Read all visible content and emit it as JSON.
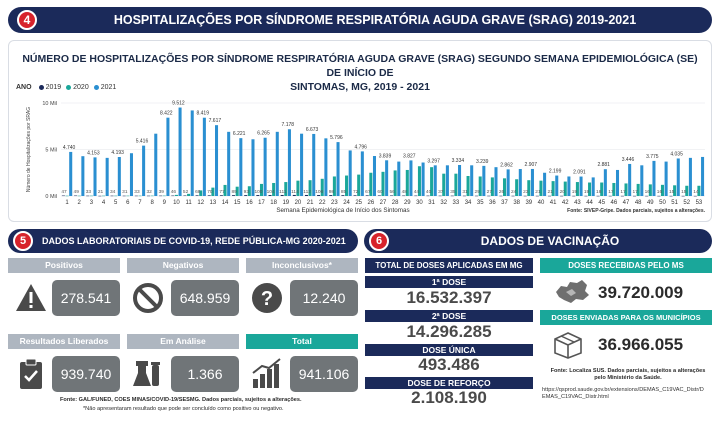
{
  "header": {
    "number": "4",
    "title": "HOSPITALIZAÇÕES POR SÍNDROME RESPIRATÓRIA AGUDA GRAVE (SRAG) 2019-2021"
  },
  "chart": {
    "title_line1": "NÚMERO DE HOSPITALIZAÇÕES POR SÍNDROME RESPIRATÓRIA AGUDA GRAVE (SRAG) SEGUNDO SEMANA EPIDEMIOLÓGICA (SE) DE INÍCIO DE",
    "title_line2": "SINTOMAS, MG, 2019 - 2021",
    "legend_label": "ANO",
    "source": "Fonte: SIVEP-Gripe. Dados parciais, sujeitos a alterações."
  },
  "chart_data": {
    "type": "bar",
    "title": "NÚMERO DE HOSPITALIZAÇÕES POR SÍNDROME RESPIRATÓRIA AGUDA GRAVE (SRAG) SEGUNDO SEMANA EPIDEMIOLÓGICA (SE) DE INÍCIO DE SINTOMAS, MG, 2019 - 2021",
    "xlabel": "Semana Epidemiológica de Início dos Sintomas",
    "ylabel": "Número de Hospitalizações por SRAG",
    "yticks": [
      "0 Mil",
      "5 Mil",
      "10 Mil"
    ],
    "ylim": [
      0,
      10000
    ],
    "categories": [
      "1",
      "2",
      "3",
      "4",
      "5",
      "6",
      "7",
      "8",
      "9",
      "10",
      "11",
      "12",
      "13",
      "14",
      "15",
      "16",
      "17",
      "18",
      "19",
      "20",
      "21",
      "22",
      "23",
      "24",
      "25",
      "26",
      "27",
      "28",
      "29",
      "30",
      "31",
      "32",
      "33",
      "34",
      "35",
      "36",
      "37",
      "38",
      "39",
      "40",
      "41",
      "42",
      "43",
      "44",
      "45",
      "46",
      "47",
      "48",
      "49",
      "50",
      "51",
      "52",
      "53"
    ],
    "series": [
      {
        "name": "2019",
        "color": "#1b2a5a",
        "values": [
          47,
          49,
          33,
          21,
          34,
          31,
          33,
          32,
          39,
          46,
          52,
          68,
          70,
          77,
          89,
          93,
          100,
          104,
          111,
          114,
          112,
          106,
          98,
          85,
          72,
          67,
          60,
          56,
          48,
          44,
          40,
          37,
          35,
          31,
          29,
          27,
          26,
          24,
          23,
          21,
          21,
          20,
          19,
          19,
          18,
          17,
          17,
          17,
          16,
          16,
          15,
          15,
          14
        ],
        "labels": [
          "47",
          "49",
          "33",
          "21",
          "34",
          "31",
          "33",
          "32",
          "39",
          "46",
          "52",
          "68",
          "70",
          "77",
          "89",
          "93",
          "100",
          "104",
          "111",
          "114",
          "112",
          "106",
          "98",
          "85",
          "72",
          "67",
          "60",
          "56",
          "48",
          "44",
          "40",
          "37",
          "35",
          "31",
          "29",
          "27",
          "26",
          "24",
          "23",
          "21",
          "21",
          "20",
          "19",
          "19",
          "18",
          "17",
          "17",
          "17",
          "16",
          "16",
          "15",
          "15",
          "14"
        ]
      },
      {
        "name": "2020",
        "color": "#1aa79a",
        "values": [
          30,
          32,
          35,
          33,
          34,
          35,
          36,
          38,
          40,
          120,
          230,
          600,
          900,
          1190,
          1000,
          1050,
          1300,
          1400,
          1500,
          1650,
          1700,
          1850,
          2100,
          2200,
          2300,
          2500,
          2600,
          2750,
          2800,
          3200,
          3100,
          2400,
          2400,
          2150,
          2100,
          2000,
          1900,
          1800,
          1700,
          1650,
          1600,
          1550,
          1500,
          1450,
          1450,
          1400,
          1350,
          1300,
          1250,
          1200,
          1150,
          1100,
          1100
        ],
        "labels": [
          "",
          "",
          "",
          "",
          "",
          "",
          "",
          "",
          "",
          "",
          "",
          "",
          "",
          "",
          "",
          "",
          "",
          "",
          "",
          "",
          "",
          "",
          "",
          "",
          "",
          "",
          "",
          "",
          "",
          "",
          "",
          "",
          "",
          "",
          "",
          "",
          "",
          "",
          "",
          "",
          "",
          "",
          "",
          "",
          "",
          "",
          "",
          "",
          "",
          "",
          "",
          "",
          ""
        ]
      },
      {
        "name": "2021",
        "color": "#2a8fd1",
        "values": [
          4740,
          4280,
          4153,
          4100,
          4193,
          4600,
          5416,
          6700,
          8422,
          9512,
          9200,
          8419,
          7617,
          6900,
          6221,
          6100,
          6265,
          6900,
          7178,
          6700,
          6673,
          6200,
          5796,
          4900,
          4796,
          4300,
          3839,
          3700,
          3827,
          3600,
          3297,
          3300,
          3334,
          3300,
          3239,
          3100,
          2862,
          2900,
          2907,
          2500,
          2199,
          2100,
          2091,
          2000,
          2881,
          2800,
          3446,
          3300,
          3775,
          3700,
          4035,
          4100,
          4200
        ],
        "labels": [
          "4.740",
          "",
          "4.153",
          "",
          "4.193",
          "",
          "5.416",
          "",
          "8.422",
          "9.512",
          "",
          "8.419",
          "7.617",
          "",
          "6.221",
          "",
          "6.265",
          "",
          "7.178",
          "",
          "6.673",
          "",
          "5.796",
          "",
          "4.796",
          "",
          "3.839",
          "",
          "3.827",
          "",
          "3.297",
          "",
          "3.334",
          "",
          "3.239",
          "",
          "2.862",
          "",
          "2.907",
          "",
          "2.199",
          "",
          "2.091",
          "",
          "2.881",
          "",
          "3.446",
          "",
          "3.775",
          "",
          "4.035",
          "",
          ""
        ]
      }
    ],
    "legend_position": "top-left",
    "grid": true
  },
  "lab": {
    "number": "5",
    "title": "DADOS LABORATORIAIS DE COVID-19, REDE PÚBLICA-MG 2020-2021",
    "cells": [
      {
        "header": "Positivos",
        "value": "278.541",
        "icon": "warning-icon"
      },
      {
        "header": "Negativos",
        "value": "648.959",
        "icon": "no-entry-icon"
      },
      {
        "header": "Inconclusivos*",
        "value": "12.240",
        "icon": "question-icon"
      },
      {
        "header": "Resultados Liberados",
        "value": "939.740",
        "icon": "clipboard-check-icon"
      },
      {
        "header": "Em Análise",
        "value": "1.366",
        "icon": "lab-flask-icon"
      },
      {
        "header": "Total",
        "value": "941.106",
        "icon": "growth-chart-icon"
      }
    ],
    "source": "Fonte: GAL/FUNED, COES MINAS/COVID-19/SESMG. Dados parciais, sujeitos a alterações.",
    "footnote": "*Não apresentaram resultado que pode ser concluído como positivo ou negativo."
  },
  "vaccination": {
    "number": "6",
    "title": "DADOS DE VACINAÇÃO",
    "total_applied_label": "TOTAL DE DOSES APLICADAS EM MG",
    "doses": [
      {
        "label": "1ª DOSE",
        "value": "16.532.397"
      },
      {
        "label": "2ª DOSE",
        "value": "14.296.285"
      },
      {
        "label": "DOSE ÚNICA",
        "value": "493.486"
      },
      {
        "label": "DOSE DE REFORÇO",
        "value": "2.108.190"
      }
    ],
    "received_label": "DOSES RECEBIDAS PELO MS",
    "received_value": "39.720.009",
    "sent_label": "DOSES ENVIADAS PARA OS MUNICÍPIOS",
    "sent_value": "36.966.055",
    "source_line1": "Fonte: Localiza SUS. Dados parciais, sujeitos a alterações",
    "source_line2": "pelo Ministério da Saúde.",
    "source_url1": "https://qsprod.saude.gov.br/extensions/DEMAS_C19VAC_Distr/D",
    "source_url2": "EMAS_C19VAC_Distr.html"
  }
}
